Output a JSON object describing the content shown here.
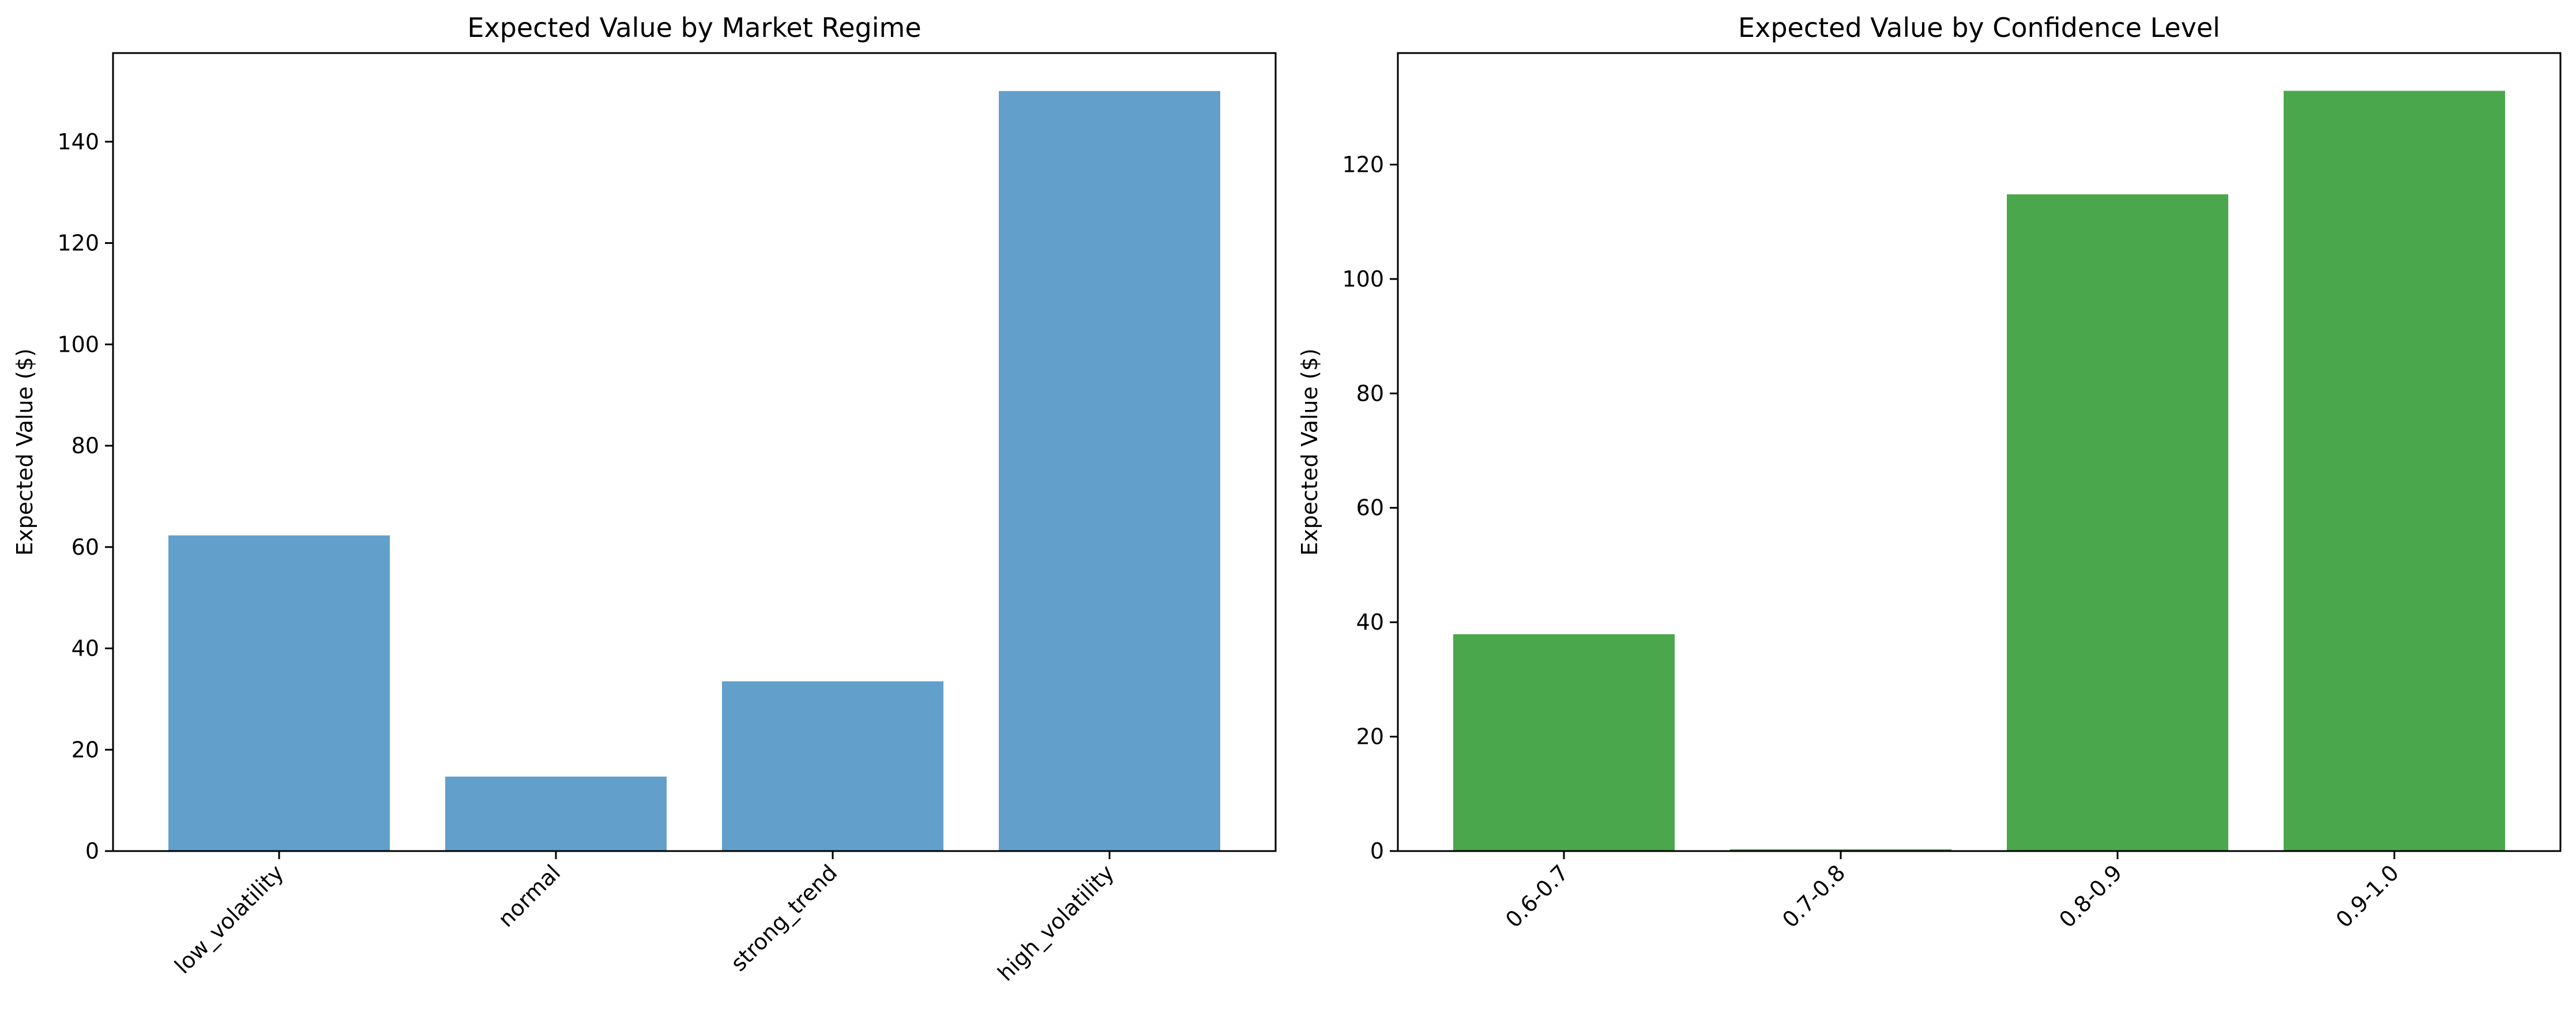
{
  "chart_data": [
    {
      "type": "bar",
      "title": "Expected Value by Market Regime",
      "xlabel": "",
      "ylabel": "Expected Value ($)",
      "categories": [
        "low_volatility",
        "normal",
        "strong_trend",
        "high_volatility"
      ],
      "values": [
        62.3,
        14.7,
        33.5,
        150.0
      ],
      "ylim": [
        0,
        157.5
      ],
      "yticks": [
        0,
        20,
        40,
        60,
        80,
        100,
        120,
        140
      ],
      "xtick_rotation": 45,
      "grid": false,
      "color": "#62a0cb"
    },
    {
      "type": "bar",
      "title": "Expected Value by Confidence Level",
      "xlabel": "",
      "ylabel": "Expected Value ($)",
      "categories": [
        "0.6-0.7",
        "0.7-0.8",
        "0.8-0.9",
        "0.9-1.0"
      ],
      "values": [
        37.9,
        0.3,
        114.8,
        132.9
      ],
      "ylim": [
        0,
        139.5
      ],
      "yticks": [
        0,
        20,
        40,
        60,
        80,
        100,
        120
      ],
      "xtick_rotation": 45,
      "grid": false,
      "color": "#4ba74b"
    }
  ]
}
